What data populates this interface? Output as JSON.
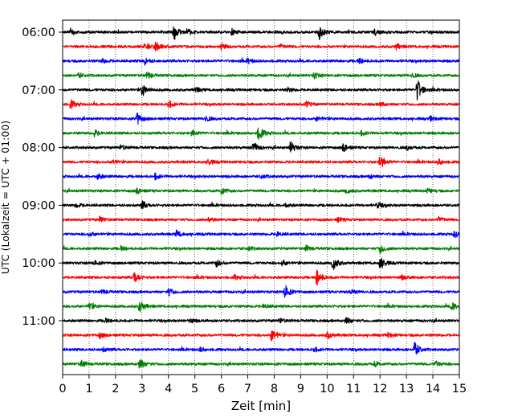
{
  "chart_data": {
    "type": "line",
    "title": "",
    "xlabel": "Zeit  [min]",
    "ylabel": "UTC (Lokalzeit = UTC + 01:00)",
    "xlim": [
      0,
      15
    ],
    "x_ticks": [
      "0",
      "1",
      "2",
      "3",
      "4",
      "5",
      "6",
      "7",
      "8",
      "9",
      "10",
      "11",
      "12",
      "13",
      "14",
      "15"
    ],
    "y_ticks": [
      "06:00",
      "07:00",
      "08:00",
      "09:00",
      "10:00",
      "11:00"
    ],
    "grid": "vertical dotted lines at each minute",
    "colors_cycle": [
      "#000000",
      "#ff0000",
      "#0000ff",
      "#008000"
    ],
    "series": [
      {
        "start": "06:00",
        "color": "#000000",
        "events": [
          [
            4.2,
            1.0
          ],
          [
            9.7,
            0.9
          ],
          [
            0.3,
            0.4
          ],
          [
            4.7,
            0.5
          ],
          [
            6.4,
            0.4
          ],
          [
            11.8,
            0.4
          ]
        ]
      },
      {
        "start": "06:15",
        "color": "#ff0000",
        "events": [
          [
            3.5,
            0.7
          ],
          [
            3.1,
            0.5
          ],
          [
            6.0,
            0.4
          ],
          [
            12.6,
            0.4
          ],
          [
            8.2,
            0.3
          ]
        ]
      },
      {
        "start": "06:30",
        "color": "#0000ff",
        "events": [
          [
            3.1,
            0.5
          ],
          [
            7.0,
            0.3
          ],
          [
            11.2,
            0.4
          ],
          [
            1.5,
            0.3
          ]
        ]
      },
      {
        "start": "06:45",
        "color": "#008000",
        "events": [
          [
            3.2,
            0.5
          ],
          [
            9.5,
            0.4
          ],
          [
            13.2,
            0.3
          ],
          [
            0.6,
            0.3
          ]
        ]
      },
      {
        "start": "07:00",
        "color": "#000000",
        "events": [
          [
            13.4,
            1.6
          ],
          [
            3.0,
            0.9
          ],
          [
            5.0,
            0.4
          ],
          [
            8.5,
            0.3
          ]
        ]
      },
      {
        "start": "07:15",
        "color": "#ff0000",
        "events": [
          [
            0.3,
            0.6
          ],
          [
            4.0,
            0.5
          ],
          [
            9.2,
            0.4
          ],
          [
            12.0,
            0.3
          ]
        ]
      },
      {
        "start": "07:30",
        "color": "#0000ff",
        "events": [
          [
            2.8,
            0.9
          ],
          [
            5.4,
            0.4
          ],
          [
            9.6,
            0.3
          ],
          [
            13.9,
            0.3
          ]
        ]
      },
      {
        "start": "07:45",
        "color": "#008000",
        "events": [
          [
            7.4,
            1.1
          ],
          [
            1.2,
            0.4
          ],
          [
            4.9,
            0.4
          ],
          [
            11.3,
            0.3
          ]
        ]
      },
      {
        "start": "08:00",
        "color": "#000000",
        "events": [
          [
            8.6,
            0.9
          ],
          [
            7.2,
            0.8
          ],
          [
            10.6,
            0.6
          ],
          [
            2.2,
            0.3
          ],
          [
            13.0,
            0.3
          ]
        ]
      },
      {
        "start": "08:15",
        "color": "#ff0000",
        "events": [
          [
            12.0,
            1.0
          ],
          [
            5.5,
            0.4
          ],
          [
            14.2,
            0.4
          ],
          [
            1.9,
            0.3
          ]
        ]
      },
      {
        "start": "08:30",
        "color": "#0000ff",
        "events": [
          [
            1.3,
            0.5
          ],
          [
            3.5,
            0.4
          ],
          [
            7.5,
            0.3
          ],
          [
            11.6,
            0.3
          ]
        ]
      },
      {
        "start": "08:45",
        "color": "#008000",
        "events": [
          [
            6.0,
            0.5
          ],
          [
            2.8,
            0.4
          ],
          [
            10.7,
            0.4
          ],
          [
            13.8,
            0.3
          ]
        ]
      },
      {
        "start": "09:00",
        "color": "#000000",
        "events": [
          [
            3.0,
            0.6
          ],
          [
            8.4,
            0.3
          ],
          [
            11.9,
            0.4
          ],
          [
            0.5,
            0.3
          ]
        ]
      },
      {
        "start": "09:15",
        "color": "#ff0000",
        "events": [
          [
            1.4,
            0.4
          ],
          [
            5.5,
            0.3
          ],
          [
            10.4,
            0.3
          ],
          [
            14.2,
            0.4
          ]
        ]
      },
      {
        "start": "09:30",
        "color": "#0000ff",
        "events": [
          [
            4.3,
            0.5
          ],
          [
            8.1,
            0.3
          ],
          [
            14.8,
            0.5
          ],
          [
            1.0,
            0.3
          ]
        ]
      },
      {
        "start": "09:45",
        "color": "#008000",
        "events": [
          [
            12.0,
            0.6
          ],
          [
            2.2,
            0.3
          ],
          [
            7.0,
            0.3
          ],
          [
            9.2,
            0.4
          ]
        ]
      },
      {
        "start": "10:00",
        "color": "#000000",
        "events": [
          [
            10.2,
            1.1
          ],
          [
            12.0,
            1.0
          ],
          [
            5.8,
            0.5
          ],
          [
            1.2,
            0.3
          ],
          [
            8.3,
            0.4
          ]
        ]
      },
      {
        "start": "10:15",
        "color": "#ff0000",
        "events": [
          [
            9.6,
            1.3
          ],
          [
            2.7,
            0.9
          ],
          [
            6.5,
            0.3
          ],
          [
            12.8,
            0.3
          ]
        ]
      },
      {
        "start": "10:30",
        "color": "#0000ff",
        "events": [
          [
            8.4,
            1.0
          ],
          [
            4.0,
            0.5
          ],
          [
            10.9,
            0.3
          ],
          [
            1.5,
            0.3
          ]
        ]
      },
      {
        "start": "10:45",
        "color": "#008000",
        "events": [
          [
            2.9,
            0.9
          ],
          [
            1.0,
            0.5
          ],
          [
            14.7,
            0.6
          ],
          [
            7.6,
            0.3
          ]
        ]
      },
      {
        "start": "11:00",
        "color": "#000000",
        "events": [
          [
            10.7,
            0.5
          ],
          [
            4.8,
            0.3
          ],
          [
            8.2,
            0.3
          ],
          [
            1.6,
            0.3
          ]
        ]
      },
      {
        "start": "11:15",
        "color": "#ff0000",
        "events": [
          [
            7.9,
            1.0
          ],
          [
            10.0,
            0.5
          ],
          [
            1.4,
            0.4
          ],
          [
            12.3,
            0.3
          ]
        ]
      },
      {
        "start": "11:30",
        "color": "#0000ff",
        "events": [
          [
            13.3,
            1.1
          ],
          [
            5.2,
            0.3
          ],
          [
            1.5,
            0.3
          ],
          [
            9.5,
            0.3
          ]
        ]
      },
      {
        "start": "11:45",
        "color": "#008000",
        "events": [
          [
            2.9,
            0.8
          ],
          [
            0.7,
            0.5
          ],
          [
            14.1,
            0.4
          ],
          [
            11.8,
            0.3
          ]
        ]
      }
    ]
  }
}
